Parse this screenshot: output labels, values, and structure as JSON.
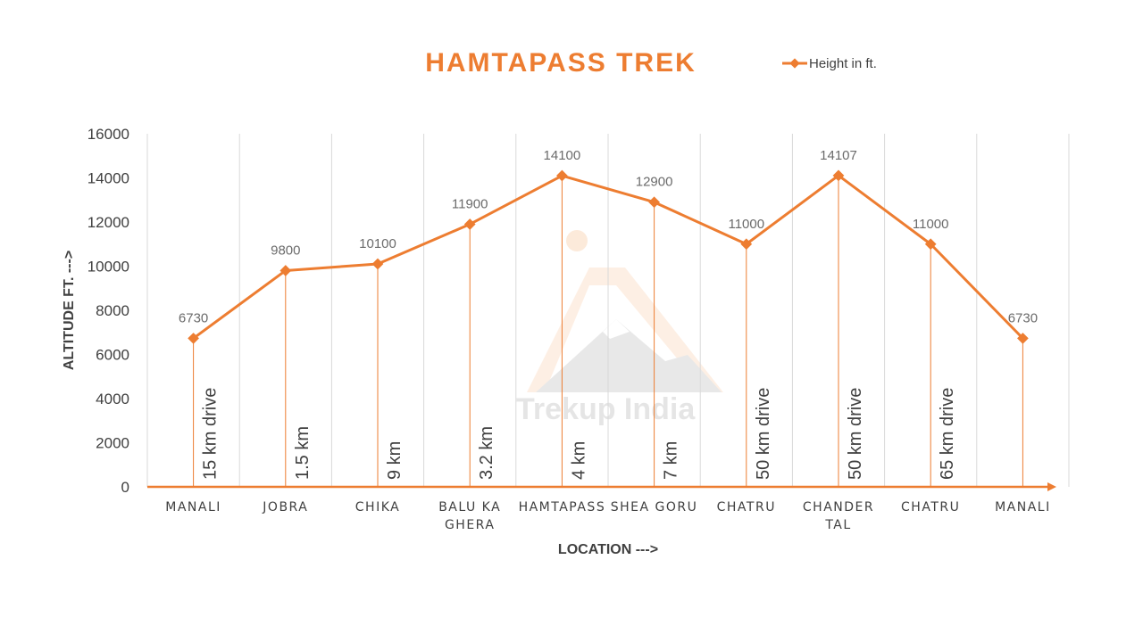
{
  "chart_data": {
    "type": "line",
    "title": "HAMTAPASS TREK",
    "xlabel": "LOCATION --->",
    "ylabel": "ALTITUDE FT. --->",
    "categories": [
      "MANALI",
      "JOBRA",
      "CHIKA",
      "BALU KA GHERA",
      "HAMTAPASS",
      "SHEA GORU",
      "CHATRU",
      "CHANDER TAL",
      "CHATRU",
      "MANALI"
    ],
    "series": [
      {
        "name": "Height in ft.",
        "values": [
          6730,
          9800,
          10100,
          11900,
          14100,
          12900,
          11000,
          14107,
          11000,
          6730
        ],
        "color": "#ED7D31"
      }
    ],
    "segment_labels": [
      "15 km drive",
      "1.5 km",
      "9 km",
      "3.2 km",
      "4 km",
      "7 km",
      "50 km drive",
      "50 km drive",
      "65 km drive"
    ],
    "yticks": [
      "0",
      "2000",
      "4000",
      "6000",
      "8000",
      "10000",
      "12000",
      "14000",
      "16000"
    ],
    "ylim": [
      0,
      16000
    ],
    "grid": "vertical",
    "legend_position": "top-right",
    "watermark": "Trekup India",
    "colors": {
      "accent": "#ED7D31",
      "text": "#404040",
      "grid": "#D9D9D9",
      "data_label": "#6B6B6B"
    }
  }
}
